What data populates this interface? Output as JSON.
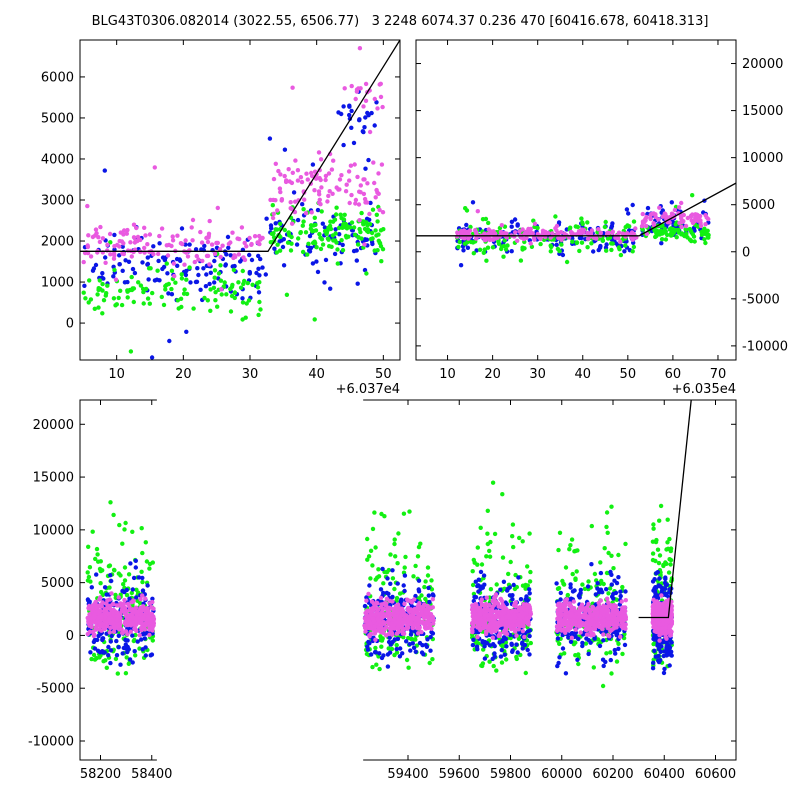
{
  "title": "BLG43T0306.082014 (3022.55, 6506.77)   3 2248 6074.37 0.236 470 [60416.678, 60418.313]",
  "colors": {
    "blue": "#0a16e6",
    "green": "#12f012",
    "pink": "#e95ae0",
    "line": "#000000"
  },
  "chart_data": [
    {
      "type": "scatter",
      "panel": "top-left",
      "x_offset_label": "+6.037e4",
      "xlim": [
        4.5,
        52.5
      ],
      "ylim": [
        -900,
        6900
      ],
      "xticks": [
        10,
        20,
        30,
        40,
        50
      ],
      "yticks": [
        0,
        1000,
        2000,
        3000,
        4000,
        5000,
        6000
      ],
      "ytick_side": "left",
      "series": [
        {
          "color": "blue",
          "clusters": [
            {
              "xrange": [
                5,
                32
              ],
              "center": 1400,
              "spread": 900,
              "n": 140
            },
            {
              "xrange": [
                32,
                49
              ],
              "center": 2100,
              "spread": 900,
              "n": 90
            },
            {
              "xrange": [
                43,
                49
              ],
              "center": 5000,
              "spread": 700,
              "n": 25
            }
          ]
        },
        {
          "color": "green",
          "clusters": [
            {
              "xrange": [
                5,
                32
              ],
              "center": 800,
              "spread": 700,
              "n": 120
            },
            {
              "xrange": [
                33,
                50
              ],
              "center": 2200,
              "spread": 700,
              "n": 150
            }
          ]
        },
        {
          "color": "pink",
          "clusters": [
            {
              "xrange": [
                5,
                32
              ],
              "center": 1900,
              "spread": 500,
              "n": 140
            },
            {
              "xrange": [
                33,
                50
              ],
              "center": 3300,
              "spread": 900,
              "n": 110
            },
            {
              "xrange": [
                44,
                50
              ],
              "center": 5600,
              "spread": 600,
              "n": 20
            }
          ]
        }
      ],
      "model_line": [
        [
          4.5,
          1750
        ],
        [
          32.7,
          1750
        ],
        [
          52.5,
          6900
        ]
      ]
    },
    {
      "type": "scatter",
      "panel": "top-right",
      "x_offset_label": "+6.035e4",
      "xlim": [
        3,
        74
      ],
      "ylim": [
        -11500,
        22500
      ],
      "xticks": [
        10,
        20,
        30,
        40,
        50,
        60,
        70
      ],
      "yticks": [
        -10000,
        -5000,
        0,
        5000,
        10000,
        15000,
        20000
      ],
      "ytick_side": "right",
      "series": [
        {
          "color": "blue",
          "clusters": [
            {
              "xrange": [
                12,
                52
              ],
              "center": 1600,
              "spread": 1800,
              "n": 160
            },
            {
              "xrange": [
                53,
                68
              ],
              "center": 3000,
              "spread": 2000,
              "n": 70
            }
          ]
        },
        {
          "color": "green",
          "clusters": [
            {
              "xrange": [
                12,
                52
              ],
              "center": 1700,
              "spread": 2200,
              "n": 140
            },
            {
              "xrange": [
                53,
                68
              ],
              "center": 2000,
              "spread": 1200,
              "n": 80
            }
          ]
        },
        {
          "color": "pink",
          "clusters": [
            {
              "xrange": [
                12,
                52
              ],
              "center": 1800,
              "spread": 700,
              "n": 170
            },
            {
              "xrange": [
                53,
                68
              ],
              "center": 3500,
              "spread": 1000,
              "n": 70
            }
          ]
        }
      ],
      "model_line": [
        [
          3,
          1700
        ],
        [
          52.5,
          1700
        ],
        [
          74,
          7300
        ]
      ]
    },
    {
      "type": "scatter",
      "panel": "bottom",
      "x_offset_label": "",
      "xlim": [
        58120,
        60680
      ],
      "ylim": [
        -11800,
        22300
      ],
      "xticks": [
        58200,
        58400,
        59400,
        59600,
        59800,
        60000,
        60200,
        60400,
        60600
      ],
      "yticks": [
        -10000,
        -5000,
        0,
        5000,
        10000,
        15000,
        20000
      ],
      "ytick_side": "left",
      "axis_break_x": [
        58420,
        59225
      ],
      "seasons": [
        {
          "xrange": [
            58150,
            58410
          ]
        },
        {
          "xrange": [
            59230,
            59500
          ]
        },
        {
          "xrange": [
            59650,
            59880
          ]
        },
        {
          "xrange": [
            59980,
            60250
          ]
        },
        {
          "xrange": [
            60355,
            60430
          ]
        }
      ],
      "model_line": [
        [
          60300,
          1700
        ],
        [
          60416,
          1700
        ],
        [
          60505,
          22300
        ]
      ]
    }
  ]
}
